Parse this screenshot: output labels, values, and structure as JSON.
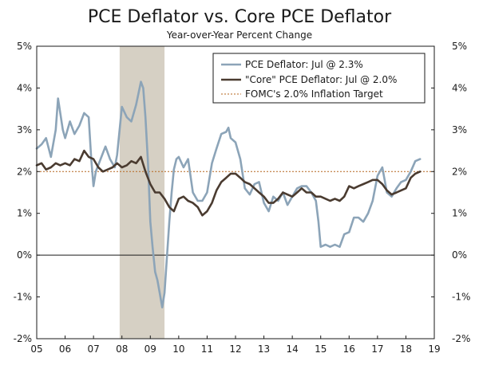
{
  "chart_data": {
    "type": "line",
    "title": "PCE Deflator vs. Core PCE Deflator",
    "subtitle": "Year-over-Year Percent Change",
    "ylim": [
      -2,
      5
    ],
    "yticks": [
      -2,
      -1,
      0,
      1,
      2,
      3,
      4,
      5
    ],
    "ytick_labels": [
      "-2%",
      "-1%",
      "0%",
      "1%",
      "2%",
      "3%",
      "4%",
      "5%"
    ],
    "xlim": [
      2005,
      2019
    ],
    "xticks": [
      2005,
      2006,
      2007,
      2008,
      2009,
      2010,
      2011,
      2012,
      2013,
      2014,
      2015,
      2016,
      2017,
      2018,
      2019
    ],
    "xtick_labels": [
      "05",
      "06",
      "07",
      "08",
      "09",
      "10",
      "11",
      "12",
      "13",
      "14",
      "15",
      "16",
      "17",
      "18",
      "19"
    ],
    "recession": {
      "start": 2007.92,
      "end": 2009.5
    },
    "target": 2.0,
    "legend_position": "top-right",
    "legend": [
      {
        "key": "pce",
        "label": "PCE Deflator: Jul @ 2.3%"
      },
      {
        "key": "core",
        "label": "\"Core\" PCE Deflator: Jul @ 2.0%"
      },
      {
        "key": "target",
        "label": "FOMC's 2.0% Inflation Target"
      }
    ],
    "series": [
      {
        "name": "PCE Deflator",
        "color": "#8ca4b8",
        "points": [
          [
            2005.0,
            2.55
          ],
          [
            2005.17,
            2.65
          ],
          [
            2005.33,
            2.8
          ],
          [
            2005.5,
            2.35
          ],
          [
            2005.67,
            3.0
          ],
          [
            2005.75,
            3.75
          ],
          [
            2005.83,
            3.4
          ],
          [
            2005.92,
            3.0
          ],
          [
            2006.0,
            2.8
          ],
          [
            2006.17,
            3.2
          ],
          [
            2006.33,
            2.9
          ],
          [
            2006.5,
            3.1
          ],
          [
            2006.67,
            3.4
          ],
          [
            2006.83,
            3.3
          ],
          [
            2006.92,
            2.3
          ],
          [
            2007.0,
            1.65
          ],
          [
            2007.08,
            2.0
          ],
          [
            2007.25,
            2.3
          ],
          [
            2007.42,
            2.6
          ],
          [
            2007.58,
            2.3
          ],
          [
            2007.75,
            2.1
          ],
          [
            2007.83,
            2.4
          ],
          [
            2008.0,
            3.55
          ],
          [
            2008.17,
            3.3
          ],
          [
            2008.33,
            3.2
          ],
          [
            2008.5,
            3.6
          ],
          [
            2008.67,
            4.15
          ],
          [
            2008.75,
            4.0
          ],
          [
            2008.83,
            3.3
          ],
          [
            2008.92,
            2.2
          ],
          [
            2009.0,
            0.8
          ],
          [
            2009.08,
            0.2
          ],
          [
            2009.17,
            -0.4
          ],
          [
            2009.25,
            -0.6
          ],
          [
            2009.33,
            -0.9
          ],
          [
            2009.42,
            -1.25
          ],
          [
            2009.5,
            -0.9
          ],
          [
            2009.58,
            -0.1
          ],
          [
            2009.67,
            0.8
          ],
          [
            2009.75,
            1.5
          ],
          [
            2009.83,
            2.05
          ],
          [
            2009.92,
            2.3
          ],
          [
            2010.0,
            2.35
          ],
          [
            2010.17,
            2.1
          ],
          [
            2010.33,
            2.3
          ],
          [
            2010.5,
            1.5
          ],
          [
            2010.67,
            1.3
          ],
          [
            2010.83,
            1.3
          ],
          [
            2011.0,
            1.5
          ],
          [
            2011.17,
            2.2
          ],
          [
            2011.33,
            2.55
          ],
          [
            2011.5,
            2.9
          ],
          [
            2011.67,
            2.95
          ],
          [
            2011.75,
            3.05
          ],
          [
            2011.83,
            2.8
          ],
          [
            2012.0,
            2.7
          ],
          [
            2012.17,
            2.3
          ],
          [
            2012.33,
            1.6
          ],
          [
            2012.5,
            1.45
          ],
          [
            2012.67,
            1.7
          ],
          [
            2012.83,
            1.75
          ],
          [
            2013.0,
            1.25
          ],
          [
            2013.17,
            1.05
          ],
          [
            2013.33,
            1.4
          ],
          [
            2013.5,
            1.3
          ],
          [
            2013.67,
            1.5
          ],
          [
            2013.83,
            1.2
          ],
          [
            2014.0,
            1.4
          ],
          [
            2014.17,
            1.6
          ],
          [
            2014.33,
            1.65
          ],
          [
            2014.5,
            1.65
          ],
          [
            2014.67,
            1.5
          ],
          [
            2014.83,
            1.3
          ],
          [
            2014.92,
            0.8
          ],
          [
            2015.0,
            0.2
          ],
          [
            2015.17,
            0.25
          ],
          [
            2015.33,
            0.2
          ],
          [
            2015.5,
            0.25
          ],
          [
            2015.67,
            0.2
          ],
          [
            2015.83,
            0.5
          ],
          [
            2016.0,
            0.55
          ],
          [
            2016.17,
            0.9
          ],
          [
            2016.33,
            0.9
          ],
          [
            2016.5,
            0.8
          ],
          [
            2016.67,
            1.0
          ],
          [
            2016.83,
            1.3
          ],
          [
            2017.0,
            1.9
          ],
          [
            2017.17,
            2.1
          ],
          [
            2017.25,
            1.8
          ],
          [
            2017.33,
            1.5
          ],
          [
            2017.5,
            1.4
          ],
          [
            2017.67,
            1.6
          ],
          [
            2017.83,
            1.75
          ],
          [
            2018.0,
            1.8
          ],
          [
            2018.17,
            2.0
          ],
          [
            2018.33,
            2.25
          ],
          [
            2018.5,
            2.3
          ]
        ]
      },
      {
        "name": "\"Core\" PCE Deflator",
        "color": "#4a3b30",
        "points": [
          [
            2005.0,
            2.15
          ],
          [
            2005.17,
            2.2
          ],
          [
            2005.33,
            2.05
          ],
          [
            2005.5,
            2.1
          ],
          [
            2005.67,
            2.2
          ],
          [
            2005.83,
            2.15
          ],
          [
            2006.0,
            2.2
          ],
          [
            2006.17,
            2.15
          ],
          [
            2006.33,
            2.3
          ],
          [
            2006.5,
            2.25
          ],
          [
            2006.67,
            2.5
          ],
          [
            2006.83,
            2.35
          ],
          [
            2007.0,
            2.3
          ],
          [
            2007.17,
            2.1
          ],
          [
            2007.33,
            2.0
          ],
          [
            2007.5,
            2.05
          ],
          [
            2007.67,
            2.1
          ],
          [
            2007.83,
            2.2
          ],
          [
            2008.0,
            2.1
          ],
          [
            2008.17,
            2.15
          ],
          [
            2008.33,
            2.25
          ],
          [
            2008.5,
            2.2
          ],
          [
            2008.67,
            2.35
          ],
          [
            2008.83,
            2.0
          ],
          [
            2009.0,
            1.7
          ],
          [
            2009.17,
            1.5
          ],
          [
            2009.33,
            1.5
          ],
          [
            2009.5,
            1.35
          ],
          [
            2009.67,
            1.15
          ],
          [
            2009.83,
            1.05
          ],
          [
            2010.0,
            1.35
          ],
          [
            2010.17,
            1.4
          ],
          [
            2010.33,
            1.3
          ],
          [
            2010.5,
            1.25
          ],
          [
            2010.67,
            1.15
          ],
          [
            2010.83,
            0.95
          ],
          [
            2011.0,
            1.05
          ],
          [
            2011.17,
            1.25
          ],
          [
            2011.33,
            1.55
          ],
          [
            2011.5,
            1.75
          ],
          [
            2011.67,
            1.85
          ],
          [
            2011.83,
            1.95
          ],
          [
            2012.0,
            1.95
          ],
          [
            2012.17,
            1.85
          ],
          [
            2012.33,
            1.75
          ],
          [
            2012.5,
            1.7
          ],
          [
            2012.67,
            1.6
          ],
          [
            2012.83,
            1.5
          ],
          [
            2013.0,
            1.4
          ],
          [
            2013.17,
            1.25
          ],
          [
            2013.33,
            1.25
          ],
          [
            2013.5,
            1.35
          ],
          [
            2013.67,
            1.5
          ],
          [
            2013.83,
            1.45
          ],
          [
            2014.0,
            1.4
          ],
          [
            2014.17,
            1.5
          ],
          [
            2014.33,
            1.6
          ],
          [
            2014.5,
            1.5
          ],
          [
            2014.67,
            1.5
          ],
          [
            2014.83,
            1.4
          ],
          [
            2015.0,
            1.4
          ],
          [
            2015.17,
            1.35
          ],
          [
            2015.33,
            1.3
          ],
          [
            2015.5,
            1.35
          ],
          [
            2015.67,
            1.3
          ],
          [
            2015.83,
            1.4
          ],
          [
            2016.0,
            1.65
          ],
          [
            2016.17,
            1.6
          ],
          [
            2016.33,
            1.65
          ],
          [
            2016.5,
            1.7
          ],
          [
            2016.67,
            1.75
          ],
          [
            2016.83,
            1.8
          ],
          [
            2017.0,
            1.8
          ],
          [
            2017.17,
            1.7
          ],
          [
            2017.33,
            1.55
          ],
          [
            2017.5,
            1.45
          ],
          [
            2017.67,
            1.5
          ],
          [
            2017.83,
            1.55
          ],
          [
            2018.0,
            1.6
          ],
          [
            2018.17,
            1.85
          ],
          [
            2018.33,
            1.95
          ],
          [
            2018.5,
            2.0
          ]
        ]
      }
    ]
  }
}
